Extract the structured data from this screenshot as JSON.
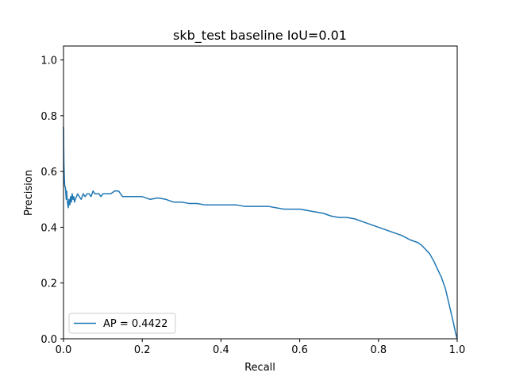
{
  "chart_data": {
    "type": "line",
    "title": "skb_test baseline IoU=0.01",
    "xlabel": "Recall",
    "ylabel": "Precision",
    "xlim": [
      0,
      1
    ],
    "ylim": [
      0,
      1.05
    ],
    "xticks": [
      "0.0",
      "0.2",
      "0.4",
      "0.6",
      "0.8",
      "1.0"
    ],
    "yticks": [
      "0.0",
      "0.2",
      "0.4",
      "0.6",
      "0.8",
      "1.0"
    ],
    "grid": false,
    "legend_position": "lower-left",
    "series": [
      {
        "name": "AP = 0.4422",
        "color": "#1f77b4",
        "x": [
          0.0,
          0.001,
          0.002,
          0.003,
          0.005,
          0.006,
          0.007,
          0.008,
          0.01,
          0.012,
          0.014,
          0.016,
          0.018,
          0.02,
          0.022,
          0.024,
          0.026,
          0.028,
          0.03,
          0.033,
          0.036,
          0.04,
          0.045,
          0.05,
          0.055,
          0.06,
          0.065,
          0.07,
          0.075,
          0.08,
          0.085,
          0.09,
          0.095,
          0.1,
          0.11,
          0.12,
          0.13,
          0.14,
          0.145,
          0.15,
          0.16,
          0.17,
          0.18,
          0.2,
          0.22,
          0.24,
          0.26,
          0.28,
          0.3,
          0.32,
          0.34,
          0.36,
          0.38,
          0.4,
          0.42,
          0.44,
          0.46,
          0.48,
          0.5,
          0.52,
          0.54,
          0.56,
          0.58,
          0.6,
          0.62,
          0.64,
          0.66,
          0.68,
          0.7,
          0.72,
          0.74,
          0.76,
          0.78,
          0.8,
          0.82,
          0.84,
          0.86,
          0.88,
          0.9,
          0.91,
          0.92,
          0.93,
          0.94,
          0.95,
          0.96,
          0.97,
          0.975,
          0.98,
          0.985,
          0.99,
          0.993,
          0.996,
          0.998,
          1.0
        ],
        "y": [
          0.76,
          0.63,
          0.58,
          0.55,
          0.54,
          0.52,
          0.5,
          0.53,
          0.49,
          0.47,
          0.5,
          0.48,
          0.51,
          0.49,
          0.52,
          0.5,
          0.51,
          0.49,
          0.5,
          0.51,
          0.52,
          0.51,
          0.5,
          0.52,
          0.51,
          0.52,
          0.52,
          0.51,
          0.53,
          0.52,
          0.52,
          0.52,
          0.51,
          0.52,
          0.52,
          0.52,
          0.53,
          0.53,
          0.52,
          0.51,
          0.51,
          0.51,
          0.51,
          0.51,
          0.5,
          0.505,
          0.5,
          0.49,
          0.49,
          0.485,
          0.485,
          0.48,
          0.48,
          0.48,
          0.48,
          0.48,
          0.475,
          0.475,
          0.475,
          0.475,
          0.47,
          0.465,
          0.465,
          0.465,
          0.46,
          0.455,
          0.45,
          0.44,
          0.435,
          0.435,
          0.43,
          0.42,
          0.41,
          0.4,
          0.39,
          0.38,
          0.37,
          0.355,
          0.345,
          0.335,
          0.32,
          0.305,
          0.28,
          0.25,
          0.22,
          0.18,
          0.15,
          0.12,
          0.09,
          0.06,
          0.04,
          0.02,
          0.01,
          0.0
        ]
      }
    ]
  }
}
